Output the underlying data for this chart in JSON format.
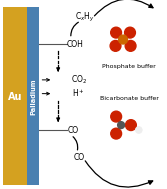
{
  "au_color": "#D4A120",
  "pd_color": "#4A80B0",
  "au_label": "Au",
  "pd_label": "Palladium",
  "bg_color": "#ffffff",
  "labels": {
    "CxHy": "C$_x$H$_y$",
    "COH": "COH",
    "CO2": "CO$_2$",
    "Hplus": "H$^+$",
    "CO1": "CO",
    "CO2_label": "CO"
  },
  "buffer_labels": [
    "Phosphate buffer",
    "Bicarbonate buffer"
  ],
  "label_fontsize": 5.5,
  "buffer_fontsize": 4.5,
  "au_fontsize": 7,
  "pd_fontsize": 4.8
}
